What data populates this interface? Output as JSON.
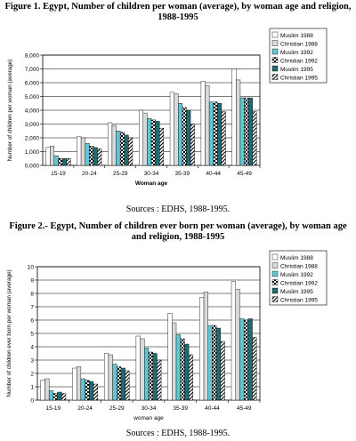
{
  "figures": [
    {
      "title": "Figure 1.  Egypt, Number of children per woman (average), by woman age and religion, 1988-1995",
      "sources": "Sources : EDHS, 1988-1995."
    },
    {
      "title": "Figure 2.- Egypt, Number of children ever born per woman (average), by woman age and religion, 1988-1995",
      "sources": "Sources : EDHS, 1988-1995."
    }
  ],
  "series_styles": [
    {
      "fill": "#ffffff",
      "pattern": "none"
    },
    {
      "fill": "#d9d9d9",
      "pattern": "none"
    },
    {
      "fill": "#5fc8d4",
      "pattern": "none"
    },
    {
      "fill": "#ffffff",
      "pattern": "check"
    },
    {
      "fill": "#1f6b70",
      "pattern": "none"
    },
    {
      "fill": "#ffffff",
      "pattern": "diagonal"
    }
  ],
  "chart_data": [
    {
      "type": "bar",
      "categories": [
        "15-19",
        "20-24",
        "25-29",
        "30-34",
        "35-39",
        "40-44",
        "45-49"
      ],
      "series": [
        {
          "name": "Muslim 1988",
          "values": [
            1.3,
            2.1,
            3.1,
            4.0,
            5.3,
            6.1,
            7.0
          ]
        },
        {
          "name": "Christian 1988",
          "values": [
            1.4,
            2.0,
            2.9,
            3.8,
            5.2,
            5.8,
            6.2
          ]
        },
        {
          "name": "Muslim 1992",
          "values": [
            0.7,
            1.6,
            2.5,
            3.4,
            4.5,
            4.6,
            4.9
          ]
        },
        {
          "name": "Christian 1992",
          "values": [
            0.5,
            1.4,
            2.4,
            3.3,
            4.2,
            4.6,
            4.9
          ]
        },
        {
          "name": "Muslim 1995",
          "values": [
            0.5,
            1.3,
            2.2,
            3.2,
            4.0,
            4.5,
            4.9
          ]
        },
        {
          "name": "Christian 1995",
          "values": [
            0.5,
            1.2,
            2.0,
            2.7,
            3.0,
            3.9,
            3.9
          ]
        }
      ],
      "xlabel": "Woman age",
      "ylabel": "Number of children per woman (average)",
      "ylim": [
        0,
        8
      ],
      "yticks": [
        "0,000",
        "1,000",
        "2,000",
        "3,000",
        "4,000",
        "5,000",
        "6,000",
        "7,000",
        "8,000"
      ],
      "grid": true,
      "legend": "right"
    },
    {
      "type": "bar",
      "categories": [
        "15-19",
        "20-24",
        "25-29",
        "30-34",
        "35-39",
        "40-44",
        "45-49"
      ],
      "series": [
        {
          "name": "Muslim 1988",
          "values": [
            1.5,
            2.4,
            3.5,
            4.8,
            6.5,
            7.7,
            8.9
          ]
        },
        {
          "name": "Christian 1988",
          "values": [
            1.6,
            2.5,
            3.4,
            4.6,
            5.8,
            8.1,
            8.3
          ]
        },
        {
          "name": "Muslim 1992",
          "values": [
            0.7,
            1.6,
            2.7,
            3.9,
            4.9,
            5.6,
            6.1
          ]
        },
        {
          "name": "Christian 1992",
          "values": [
            0.5,
            1.5,
            2.5,
            3.6,
            4.6,
            5.6,
            6.0
          ]
        },
        {
          "name": "Muslim 1995",
          "values": [
            0.6,
            1.4,
            2.4,
            3.5,
            4.2,
            5.4,
            6.1
          ]
        },
        {
          "name": "Christian 1995",
          "values": [
            0.5,
            1.2,
            2.2,
            3.0,
            3.4,
            4.4,
            4.7
          ]
        }
      ],
      "xlabel": "woman age",
      "ylabel": "Number of children ever born per woman (average)",
      "ylim": [
        0,
        10
      ],
      "yticks": [
        "0",
        "1",
        "2",
        "3",
        "4",
        "5",
        "6",
        "7",
        "8",
        "9",
        "10"
      ],
      "grid": true,
      "legend": "right"
    }
  ]
}
